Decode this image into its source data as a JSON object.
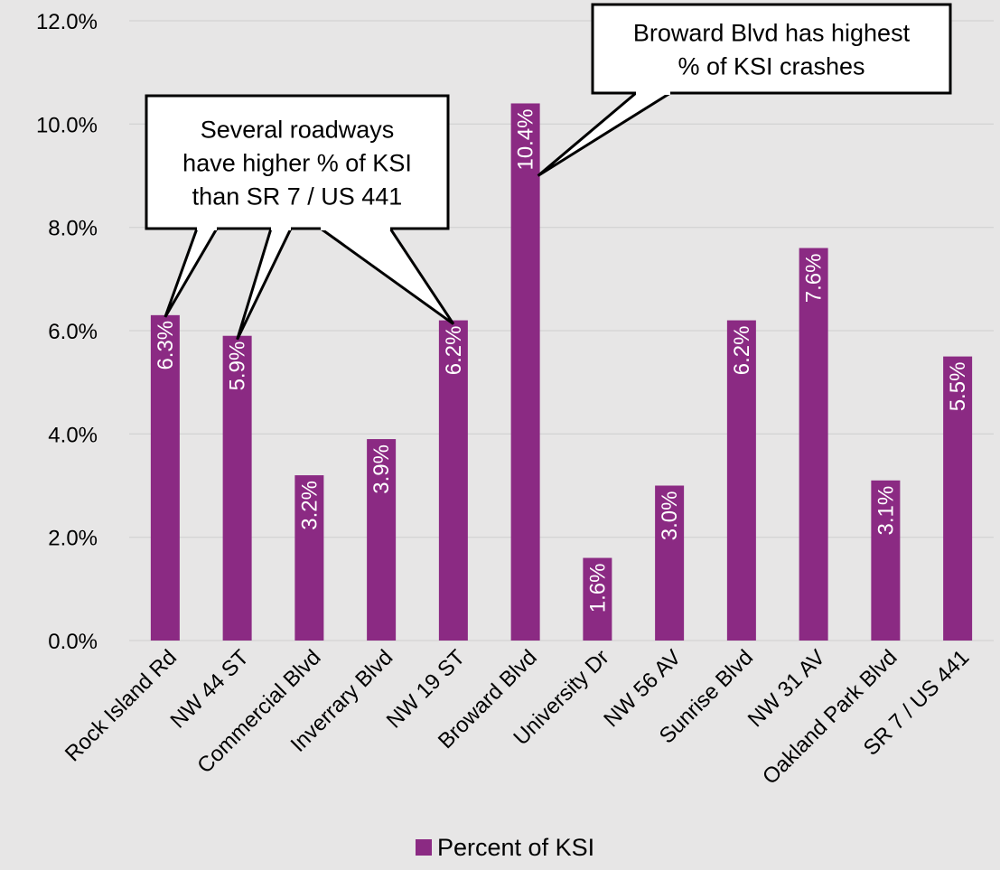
{
  "chart_data": {
    "type": "bar",
    "categories": [
      "Rock Island Rd",
      "NW 44 ST",
      "Commercial Blvd",
      "Inverrary Blvd",
      "NW 19 ST",
      "Broward Blvd",
      "University Dr",
      "NW 56 AV",
      "Sunrise Blvd",
      "NW 31 AV",
      "Oakland Park Blvd",
      "SR 7 / US 441"
    ],
    "series": [
      {
        "name": "Percent of KSI",
        "values": [
          6.3,
          5.9,
          3.2,
          3.9,
          6.2,
          10.4,
          1.6,
          3.0,
          6.2,
          7.6,
          3.1,
          5.5
        ],
        "labels": [
          "6.3%",
          "5.9%",
          "3.2%",
          "3.9%",
          "6.2%",
          "10.4%",
          "1.6%",
          "3.0%",
          "6.2%",
          "7.6%",
          "3.1%",
          "5.5%"
        ],
        "color": "#8b2a83"
      }
    ],
    "ylim": [
      0,
      12
    ],
    "yticks": [
      "0.0%",
      "2.0%",
      "4.0%",
      "6.0%",
      "8.0%",
      "10.0%",
      "12.0%"
    ],
    "grid": true,
    "legend_position": "bottom",
    "annotations": [
      {
        "id": "several",
        "lines": [
          "Several roadways",
          "have higher % of KSI",
          "than SR 7 / US 441"
        ],
        "points_to": [
          "Rock Island Rd",
          "NW 44 ST",
          "NW 19 ST"
        ]
      },
      {
        "id": "broward",
        "lines": [
          "Broward Blvd has highest",
          "% of KSI crashes"
        ],
        "points_to": [
          "Broward Blvd"
        ]
      }
    ]
  },
  "colors": {
    "background": "#e7e6e6",
    "bar": "#8b2a83",
    "grid": "#d4d4d4"
  }
}
